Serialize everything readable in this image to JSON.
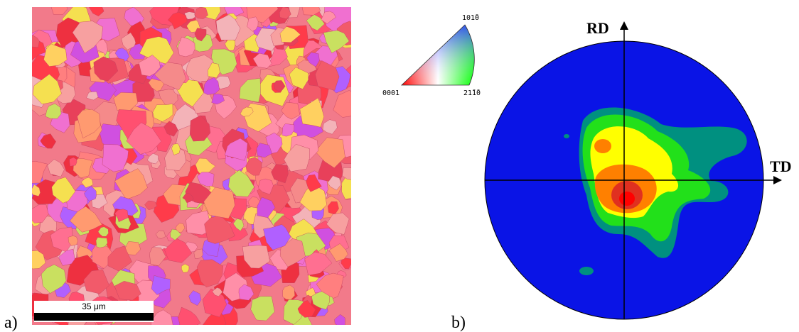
{
  "panel_a": {
    "label": "a)",
    "scale_bar": "35 μm"
  },
  "color_key": {
    "corner_left": "0001",
    "corner_right": "21̄1̄0",
    "corner_top": "101̄0"
  },
  "panel_b": {
    "label": "b)",
    "axis_vertical": "RD",
    "axis_horizontal": "TD"
  }
}
